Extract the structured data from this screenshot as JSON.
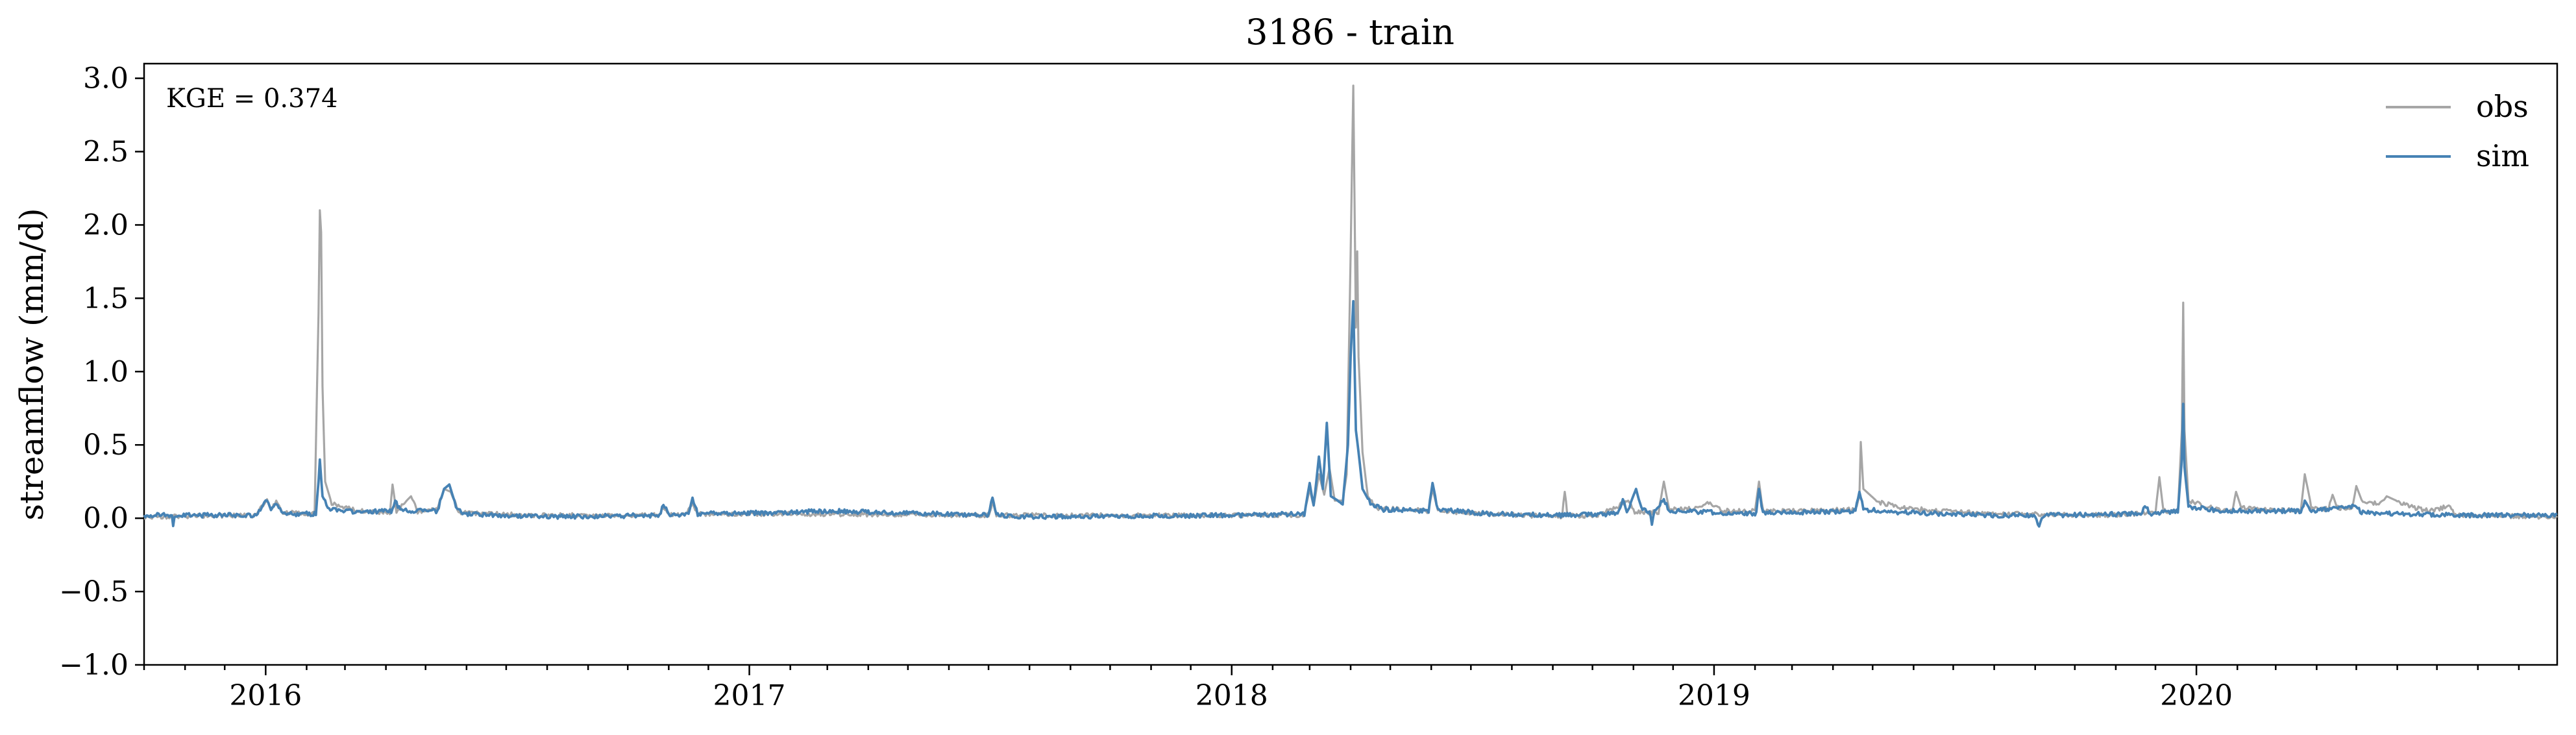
{
  "chart_data": {
    "type": "line",
    "title": "3186 - train",
    "xlabel": "",
    "ylabel": "streamflow (mm/d)",
    "annotation": "KGE = 0.374",
    "x_range": [
      "2015-10-01",
      "2020-09-30"
    ],
    "x_ticks": [
      "2016",
      "2017",
      "2018",
      "2019",
      "2020"
    ],
    "ylim": [
      -1.0,
      3.1
    ],
    "y_ticks": [
      "−1.0",
      "−0.5",
      "0.0",
      "0.5",
      "1.0",
      "1.5",
      "2.0",
      "2.5",
      "3.0"
    ],
    "grid": false,
    "legend_position": "top-right",
    "series": [
      {
        "name": "obs",
        "color": "#a6a6a6",
        "baseline": 0.02,
        "points": [
          [
            "2015-10-01",
            0.01
          ],
          [
            "2015-12-25",
            0.02
          ],
          [
            "2016-01-02",
            0.13
          ],
          [
            "2016-01-05",
            0.05
          ],
          [
            "2016-01-09",
            0.12
          ],
          [
            "2016-01-14",
            0.04
          ],
          [
            "2016-02-07",
            0.03
          ],
          [
            "2016-02-10",
            1.4
          ],
          [
            "2016-02-11",
            2.1
          ],
          [
            "2016-02-12",
            1.95
          ],
          [
            "2016-02-13",
            0.9
          ],
          [
            "2016-02-15",
            0.25
          ],
          [
            "2016-02-20",
            0.1
          ],
          [
            "2016-03-10",
            0.05
          ],
          [
            "2016-04-04",
            0.04
          ],
          [
            "2016-04-06",
            0.23
          ],
          [
            "2016-04-09",
            0.05
          ],
          [
            "2016-04-20",
            0.15
          ],
          [
            "2016-04-25",
            0.04
          ],
          [
            "2016-05-10",
            0.06
          ],
          [
            "2016-05-15",
            0.2
          ],
          [
            "2016-05-20",
            0.18
          ],
          [
            "2016-05-26",
            0.04
          ],
          [
            "2016-07-15",
            0.02
          ],
          [
            "2016-10-25",
            0.02
          ],
          [
            "2016-10-28",
            0.08
          ],
          [
            "2016-11-01",
            0.02
          ],
          [
            "2016-11-15",
            0.03
          ],
          [
            "2016-11-19",
            0.11
          ],
          [
            "2016-11-23",
            0.03
          ],
          [
            "2017-02-01",
            0.03
          ],
          [
            "2017-07-01",
            0.02
          ],
          [
            "2017-07-04",
            0.11
          ],
          [
            "2017-07-07",
            0.02
          ],
          [
            "2018-01-01",
            0.02
          ],
          [
            "2018-02-25",
            0.02
          ],
          [
            "2018-03-01",
            0.2
          ],
          [
            "2018-03-04",
            0.08
          ],
          [
            "2018-03-08",
            0.3
          ],
          [
            "2018-03-12",
            0.16
          ],
          [
            "2018-03-16",
            0.34
          ],
          [
            "2018-03-20",
            0.12
          ],
          [
            "2018-03-26",
            0.12
          ],
          [
            "2018-03-29",
            0.3
          ],
          [
            "2018-04-01",
            1.8
          ],
          [
            "2018-04-03",
            2.95
          ],
          [
            "2018-04-05",
            1.3
          ],
          [
            "2018-04-06",
            1.82
          ],
          [
            "2018-04-07",
            1.1
          ],
          [
            "2018-04-10",
            0.45
          ],
          [
            "2018-04-14",
            0.15
          ],
          [
            "2018-04-20",
            0.07
          ],
          [
            "2018-05-30",
            0.05
          ],
          [
            "2018-06-02",
            0.2
          ],
          [
            "2018-06-06",
            0.05
          ],
          [
            "2018-07-15",
            0.03
          ],
          [
            "2018-09-08",
            0.01
          ],
          [
            "2018-09-10",
            0.18
          ],
          [
            "2018-09-12",
            0.02
          ],
          [
            "2018-10-01",
            0.01
          ],
          [
            "2018-10-20",
            0.08
          ],
          [
            "2018-10-28",
            0.12
          ],
          [
            "2018-11-02",
            0.04
          ],
          [
            "2018-11-20",
            0.04
          ],
          [
            "2018-11-24",
            0.25
          ],
          [
            "2018-11-28",
            0.06
          ],
          [
            "2018-12-20",
            0.07
          ],
          [
            "2018-12-26",
            0.11
          ],
          [
            "2019-01-08",
            0.05
          ],
          [
            "2019-02-01",
            0.05
          ],
          [
            "2019-02-04",
            0.25
          ],
          [
            "2019-02-07",
            0.05
          ],
          [
            "2019-03-01",
            0.05
          ],
          [
            "2019-04-18",
            0.06
          ],
          [
            "2019-04-21",
            0.15
          ],
          [
            "2019-04-22",
            0.52
          ],
          [
            "2019-04-24",
            0.2
          ],
          [
            "2019-05-05",
            0.11
          ],
          [
            "2019-05-25",
            0.07
          ],
          [
            "2019-06-20",
            0.05
          ],
          [
            "2019-08-01",
            0.03
          ],
          [
            "2019-11-01",
            0.02
          ],
          [
            "2019-12-01",
            0.04
          ],
          [
            "2019-12-04",
            0.28
          ],
          [
            "2019-12-07",
            0.05
          ],
          [
            "2019-12-18",
            0.05
          ],
          [
            "2019-12-21",
            0.6
          ],
          [
            "2019-12-22",
            1.47
          ],
          [
            "2019-12-23",
            0.6
          ],
          [
            "2019-12-26",
            0.12
          ],
          [
            "2020-01-20",
            0.05
          ],
          [
            "2020-01-28",
            0.05
          ],
          [
            "2020-01-31",
            0.18
          ],
          [
            "2020-02-04",
            0.07
          ],
          [
            "2020-03-20",
            0.05
          ],
          [
            "2020-03-23",
            0.3
          ],
          [
            "2020-03-28",
            0.08
          ],
          [
            "2020-04-10",
            0.06
          ],
          [
            "2020-04-13",
            0.16
          ],
          [
            "2020-04-17",
            0.07
          ],
          [
            "2020-04-28",
            0.07
          ],
          [
            "2020-05-01",
            0.22
          ],
          [
            "2020-05-06",
            0.1
          ],
          [
            "2020-05-20",
            0.1
          ],
          [
            "2020-05-24",
            0.15
          ],
          [
            "2020-06-10",
            0.08
          ],
          [
            "2020-06-25",
            0.05
          ],
          [
            "2020-07-10",
            0.08
          ],
          [
            "2020-07-15",
            0.02
          ],
          [
            "2020-09-30",
            0.01
          ]
        ]
      },
      {
        "name": "sim",
        "color": "#4682b4",
        "baseline": 0.02,
        "points": [
          [
            "2015-10-01",
            0.02
          ],
          [
            "2015-10-22",
            0.02
          ],
          [
            "2015-10-23",
            -0.06
          ],
          [
            "2015-10-24",
            0.02
          ],
          [
            "2015-12-25",
            0.02
          ],
          [
            "2016-01-02",
            0.12
          ],
          [
            "2016-01-05",
            0.05
          ],
          [
            "2016-01-09",
            0.1
          ],
          [
            "2016-01-14",
            0.03
          ],
          [
            "2016-02-08",
            0.03
          ],
          [
            "2016-02-10",
            0.25
          ],
          [
            "2016-02-11",
            0.4
          ],
          [
            "2016-02-13",
            0.15
          ],
          [
            "2016-02-18",
            0.06
          ],
          [
            "2016-03-10",
            0.04
          ],
          [
            "2016-04-05",
            0.05
          ],
          [
            "2016-04-08",
            0.12
          ],
          [
            "2016-04-12",
            0.05
          ],
          [
            "2016-05-10",
            0.05
          ],
          [
            "2016-05-15",
            0.2
          ],
          [
            "2016-05-19",
            0.23
          ],
          [
            "2016-05-24",
            0.08
          ],
          [
            "2016-05-30",
            0.03
          ],
          [
            "2016-08-01",
            0.01
          ],
          [
            "2016-10-25",
            0.02
          ],
          [
            "2016-10-28",
            0.1
          ],
          [
            "2016-11-01",
            0.02
          ],
          [
            "2016-11-16",
            0.03
          ],
          [
            "2016-11-19",
            0.14
          ],
          [
            "2016-11-23",
            0.03
          ],
          [
            "2017-02-01",
            0.04
          ],
          [
            "2017-03-01",
            0.05
          ],
          [
            "2017-07-01",
            0.02
          ],
          [
            "2017-07-04",
            0.14
          ],
          [
            "2017-07-07",
            0.02
          ],
          [
            "2017-08-01",
            0.01
          ],
          [
            "2018-01-01",
            0.02
          ],
          [
            "2018-02-25",
            0.03
          ],
          [
            "2018-03-01",
            0.24
          ],
          [
            "2018-03-04",
            0.08
          ],
          [
            "2018-03-08",
            0.42
          ],
          [
            "2018-03-11",
            0.2
          ],
          [
            "2018-03-14",
            0.65
          ],
          [
            "2018-03-17",
            0.15
          ],
          [
            "2018-03-26",
            0.1
          ],
          [
            "2018-03-30",
            0.5
          ],
          [
            "2018-04-01",
            1.1
          ],
          [
            "2018-04-03",
            1.48
          ],
          [
            "2018-04-05",
            0.6
          ],
          [
            "2018-04-07",
            0.45
          ],
          [
            "2018-04-10",
            0.2
          ],
          [
            "2018-04-16",
            0.1
          ],
          [
            "2018-04-25",
            0.06
          ],
          [
            "2018-05-30",
            0.05
          ],
          [
            "2018-06-02",
            0.24
          ],
          [
            "2018-06-06",
            0.06
          ],
          [
            "2018-07-15",
            0.03
          ],
          [
            "2018-09-01",
            0.02
          ],
          [
            "2018-10-20",
            0.03
          ],
          [
            "2018-10-24",
            0.13
          ],
          [
            "2018-10-27",
            0.04
          ],
          [
            "2018-11-03",
            0.2
          ],
          [
            "2018-11-07",
            0.06
          ],
          [
            "2018-11-13",
            0.05
          ],
          [
            "2018-11-15",
            -0.04
          ],
          [
            "2018-11-17",
            0.05
          ],
          [
            "2018-11-24",
            0.13
          ],
          [
            "2018-11-28",
            0.05
          ],
          [
            "2019-01-01",
            0.04
          ],
          [
            "2019-02-02",
            0.03
          ],
          [
            "2019-02-04",
            0.2
          ],
          [
            "2019-02-07",
            0.04
          ],
          [
            "2019-03-01",
            0.04
          ],
          [
            "2019-04-18",
            0.05
          ],
          [
            "2019-04-21",
            0.18
          ],
          [
            "2019-04-24",
            0.06
          ],
          [
            "2019-05-20",
            0.04
          ],
          [
            "2019-08-01",
            0.02
          ],
          [
            "2019-09-01",
            0.02
          ],
          [
            "2019-09-04",
            -0.06
          ],
          [
            "2019-09-07",
            0.02
          ],
          [
            "2019-11-20",
            0.03
          ],
          [
            "2019-11-23",
            0.09
          ],
          [
            "2019-11-27",
            0.03
          ],
          [
            "2019-12-18",
            0.05
          ],
          [
            "2019-12-21",
            0.4
          ],
          [
            "2019-12-22",
            0.78
          ],
          [
            "2019-12-23",
            0.35
          ],
          [
            "2019-12-26",
            0.08
          ],
          [
            "2020-01-20",
            0.05
          ],
          [
            "2020-03-20",
            0.05
          ],
          [
            "2020-03-23",
            0.12
          ],
          [
            "2020-03-27",
            0.05
          ],
          [
            "2020-05-01",
            0.08
          ],
          [
            "2020-05-05",
            0.04
          ],
          [
            "2020-07-15",
            0.02
          ],
          [
            "2020-09-30",
            0.02
          ]
        ]
      }
    ]
  }
}
